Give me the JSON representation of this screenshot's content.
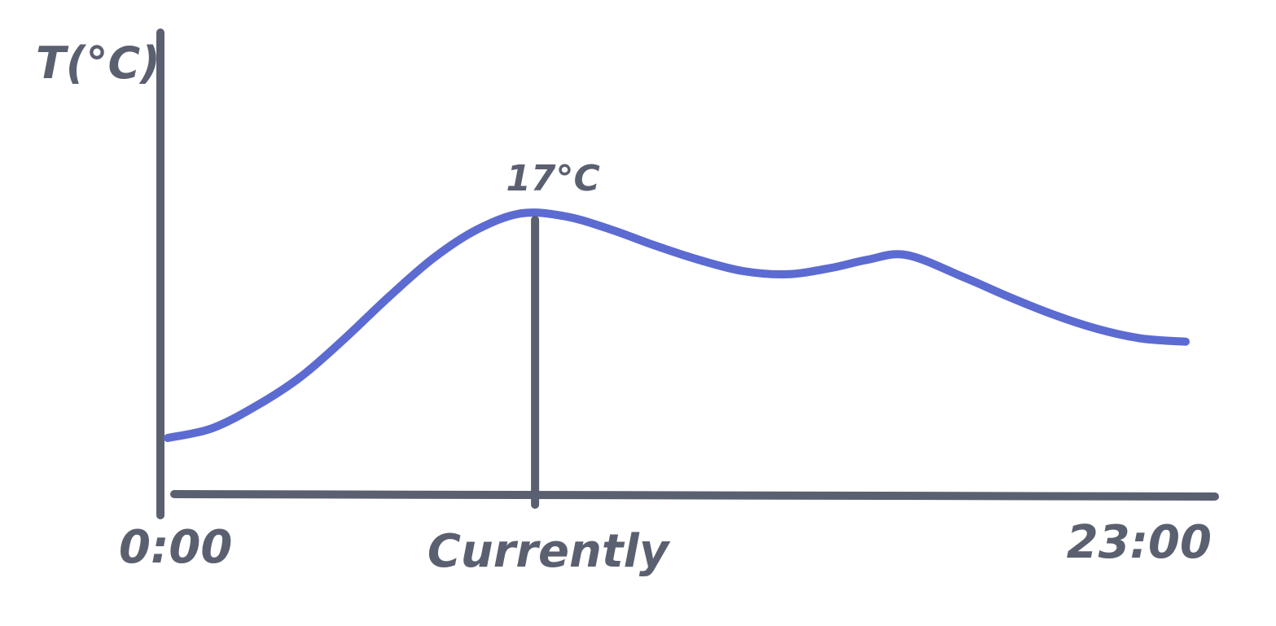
{
  "chart_data": {
    "type": "line",
    "title": "",
    "xlabel": "",
    "ylabel": "T(°C)",
    "x_start_label": "0:00",
    "x_end_label": "23:00",
    "current_marker": {
      "label": "Currently",
      "time": 8.3,
      "value_label": "17°C"
    },
    "xlim": [
      0,
      23
    ],
    "grid": false,
    "legend": "none",
    "colors": {
      "axis": "#5b6070",
      "line": "#5c6bd1",
      "text": "#5b6070"
    },
    "series": [
      {
        "x": [
          0,
          1,
          2,
          3,
          4,
          5,
          6,
          7,
          8,
          9,
          10,
          11,
          12,
          13,
          14,
          15,
          15.8,
          16.7,
          18,
          19,
          20,
          21,
          22,
          23
        ],
        "y": [
          3,
          3.6,
          5,
          6.8,
          9.2,
          11.8,
          14.2,
          16,
          17,
          16.8,
          16,
          15,
          14.1,
          13.4,
          13.2,
          13.6,
          14.1,
          14.4,
          13,
          11.8,
          10.7,
          9.8,
          9.2,
          9
        ]
      }
    ]
  }
}
